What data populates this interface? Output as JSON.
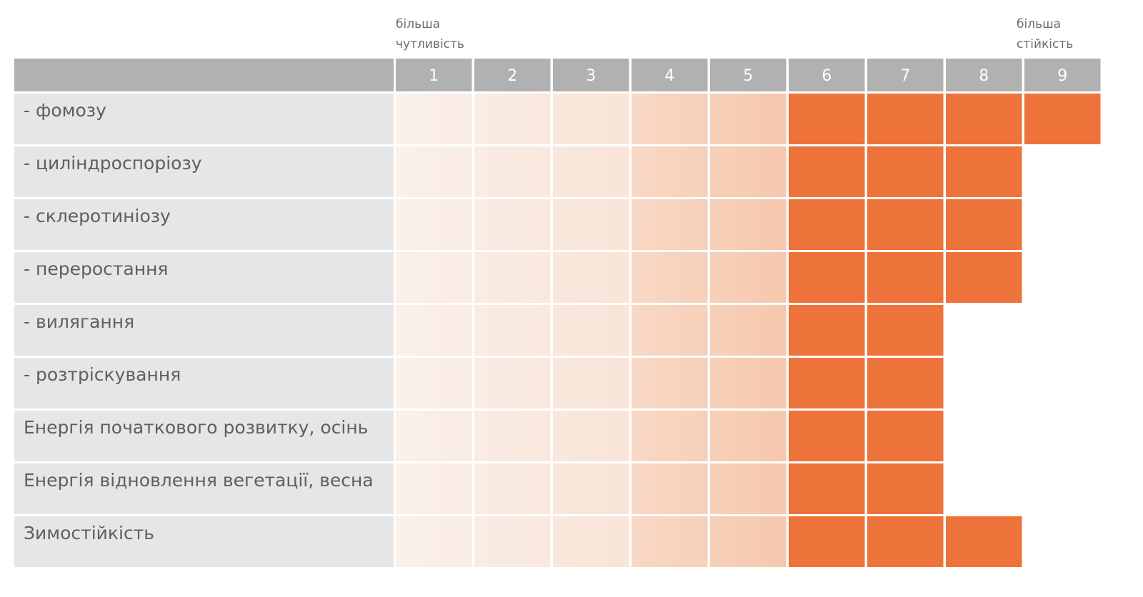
{
  "header_notes": {
    "left": [
      "більша",
      "чутливість"
    ],
    "right": [
      "більша",
      "стійкість"
    ]
  },
  "colors": {
    "header_bg": "#b1b1b1",
    "header_text": "#ffffff",
    "label_bg": "#e6e6e6",
    "label_text": "#5f5f5f",
    "filled": "#ed733b",
    "gradient_start": "#faf2ec",
    "gradient_end": "#f6c8ad",
    "note_text": "#6d6d6d"
  },
  "chart_data": {
    "type": "table",
    "scale": [
      1,
      2,
      3,
      4,
      5,
      6,
      7,
      8,
      9
    ],
    "rows": [
      {
        "label": "- фомозу",
        "value": 9
      },
      {
        "label": "- циліндроспоріозу",
        "value": 8
      },
      {
        "label": "- склеротиніозу",
        "value": 8
      },
      {
        "label": "- переростання",
        "value": 8
      },
      {
        "label": "- вилягання",
        "value": 7
      },
      {
        "label": "- розтріскування",
        "value": 7
      },
      {
        "label": "Енергія початкового розвитку, осінь",
        "value": 7
      },
      {
        "label": "Енергія відновлення вегетації, весна",
        "value": 7
      },
      {
        "label": "Зимостійкість",
        "value": 8
      }
    ]
  }
}
